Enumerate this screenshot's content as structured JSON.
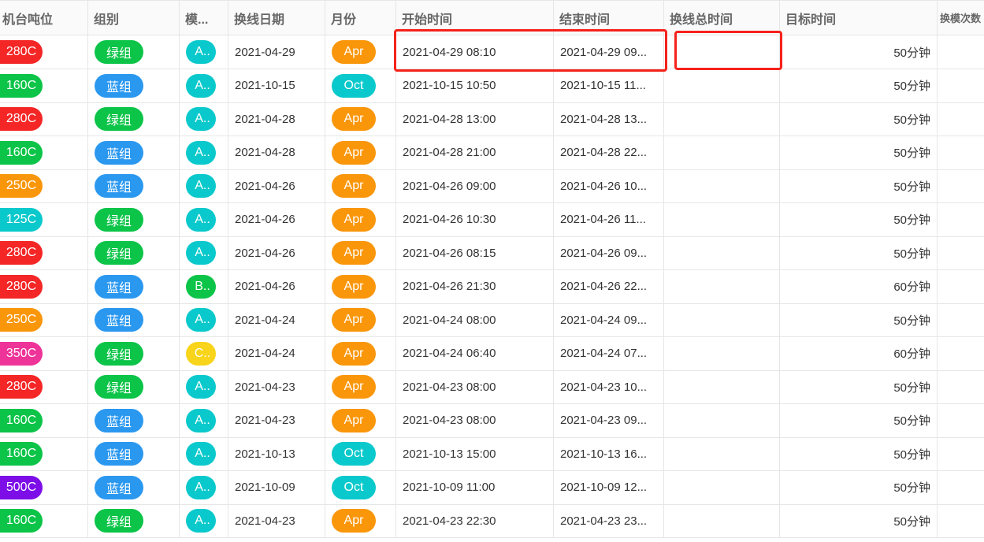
{
  "colors": {
    "red": "#f42626",
    "green": "#0bc448",
    "blue": "#2b98f0",
    "cyan": "#0ac9cc",
    "orange": "#fa960a",
    "pink": "#ee3399",
    "purple": "#7d0ee8",
    "yellow": "#f8d41a",
    "highlight": "#f5221b"
  },
  "headers": [
    "机台吨位",
    "组别",
    "模...",
    "换线日期",
    "月份",
    "开始时间",
    "结束时间",
    "换线总时间",
    "目标时间",
    "换模次数"
  ],
  "rows": [
    {
      "tonnage": "280C",
      "tcolor": "red",
      "group": "绿组",
      "gcolor": "green",
      "mold": "A..",
      "mcolor": "cyan",
      "date": "2021-04-29",
      "month": "Apr",
      "mocolor": "orange",
      "start": "2021-04-29 08:10",
      "end": "2021-04-29 09...",
      "total": "",
      "target": "50分钟"
    },
    {
      "tonnage": "160C",
      "tcolor": "green",
      "group": "蓝组",
      "gcolor": "blue",
      "mold": "A..",
      "mcolor": "cyan",
      "date": "2021-10-15",
      "month": "Oct",
      "mocolor": "cyan",
      "start": "2021-10-15 10:50",
      "end": "2021-10-15 11...",
      "total": "",
      "target": "50分钟"
    },
    {
      "tonnage": "280C",
      "tcolor": "red",
      "group": "绿组",
      "gcolor": "green",
      "mold": "A..",
      "mcolor": "cyan",
      "date": "2021-04-28",
      "month": "Apr",
      "mocolor": "orange",
      "start": "2021-04-28 13:00",
      "end": "2021-04-28 13...",
      "total": "",
      "target": "50分钟"
    },
    {
      "tonnage": "160C",
      "tcolor": "green",
      "group": "蓝组",
      "gcolor": "blue",
      "mold": "A..",
      "mcolor": "cyan",
      "date": "2021-04-28",
      "month": "Apr",
      "mocolor": "orange",
      "start": "2021-04-28 21:00",
      "end": "2021-04-28 22...",
      "total": "",
      "target": "50分钟"
    },
    {
      "tonnage": "250C",
      "tcolor": "orange",
      "group": "蓝组",
      "gcolor": "blue",
      "mold": "A..",
      "mcolor": "cyan",
      "date": "2021-04-26",
      "month": "Apr",
      "mocolor": "orange",
      "start": "2021-04-26 09:00",
      "end": "2021-04-26 10...",
      "total": "",
      "target": "50分钟"
    },
    {
      "tonnage": "125C",
      "tcolor": "cyan",
      "group": "绿组",
      "gcolor": "green",
      "mold": "A..",
      "mcolor": "cyan",
      "date": "2021-04-26",
      "month": "Apr",
      "mocolor": "orange",
      "start": "2021-04-26 10:30",
      "end": "2021-04-26 11...",
      "total": "",
      "target": "50分钟"
    },
    {
      "tonnage": "280C",
      "tcolor": "red",
      "group": "绿组",
      "gcolor": "green",
      "mold": "A..",
      "mcolor": "cyan",
      "date": "2021-04-26",
      "month": "Apr",
      "mocolor": "orange",
      "start": "2021-04-26 08:15",
      "end": "2021-04-26 09...",
      "total": "",
      "target": "50分钟"
    },
    {
      "tonnage": "280C",
      "tcolor": "red",
      "group": "蓝组",
      "gcolor": "blue",
      "mold": "B..",
      "mcolor": "green",
      "date": "2021-04-26",
      "month": "Apr",
      "mocolor": "orange",
      "start": "2021-04-26 21:30",
      "end": "2021-04-26 22...",
      "total": "",
      "target": "60分钟"
    },
    {
      "tonnage": "250C",
      "tcolor": "orange",
      "group": "蓝组",
      "gcolor": "blue",
      "mold": "A..",
      "mcolor": "cyan",
      "date": "2021-04-24",
      "month": "Apr",
      "mocolor": "orange",
      "start": "2021-04-24 08:00",
      "end": "2021-04-24 09...",
      "total": "",
      "target": "50分钟"
    },
    {
      "tonnage": "350C",
      "tcolor": "pink",
      "group": "绿组",
      "gcolor": "green",
      "mold": "C..",
      "mcolor": "yellow",
      "date": "2021-04-24",
      "month": "Apr",
      "mocolor": "orange",
      "start": "2021-04-24 06:40",
      "end": "2021-04-24 07...",
      "total": "",
      "target": "60分钟"
    },
    {
      "tonnage": "280C",
      "tcolor": "red",
      "group": "绿组",
      "gcolor": "green",
      "mold": "A..",
      "mcolor": "cyan",
      "date": "2021-04-23",
      "month": "Apr",
      "mocolor": "orange",
      "start": "2021-04-23 08:00",
      "end": "2021-04-23 10...",
      "total": "",
      "target": "50分钟"
    },
    {
      "tonnage": "160C",
      "tcolor": "green",
      "group": "蓝组",
      "gcolor": "blue",
      "mold": "A..",
      "mcolor": "cyan",
      "date": "2021-04-23",
      "month": "Apr",
      "mocolor": "orange",
      "start": "2021-04-23 08:00",
      "end": "2021-04-23 09...",
      "total": "",
      "target": "50分钟"
    },
    {
      "tonnage": "160C",
      "tcolor": "green",
      "group": "蓝组",
      "gcolor": "blue",
      "mold": "A..",
      "mcolor": "cyan",
      "date": "2021-10-13",
      "month": "Oct",
      "mocolor": "cyan",
      "start": "2021-10-13 15:00",
      "end": "2021-10-13 16...",
      "total": "",
      "target": "50分钟"
    },
    {
      "tonnage": "500C",
      "tcolor": "purple",
      "group": "蓝组",
      "gcolor": "blue",
      "mold": "A..",
      "mcolor": "cyan",
      "date": "2021-10-09",
      "month": "Oct",
      "mocolor": "cyan",
      "start": "2021-10-09 11:00",
      "end": "2021-10-09 12...",
      "total": "",
      "target": "50分钟"
    },
    {
      "tonnage": "160C",
      "tcolor": "green",
      "group": "绿组",
      "gcolor": "green",
      "mold": "A..",
      "mcolor": "cyan",
      "date": "2021-04-23",
      "month": "Apr",
      "mocolor": "orange",
      "start": "2021-04-23 22:30",
      "end": "2021-04-23 23...",
      "total": "",
      "target": "50分钟"
    }
  ]
}
